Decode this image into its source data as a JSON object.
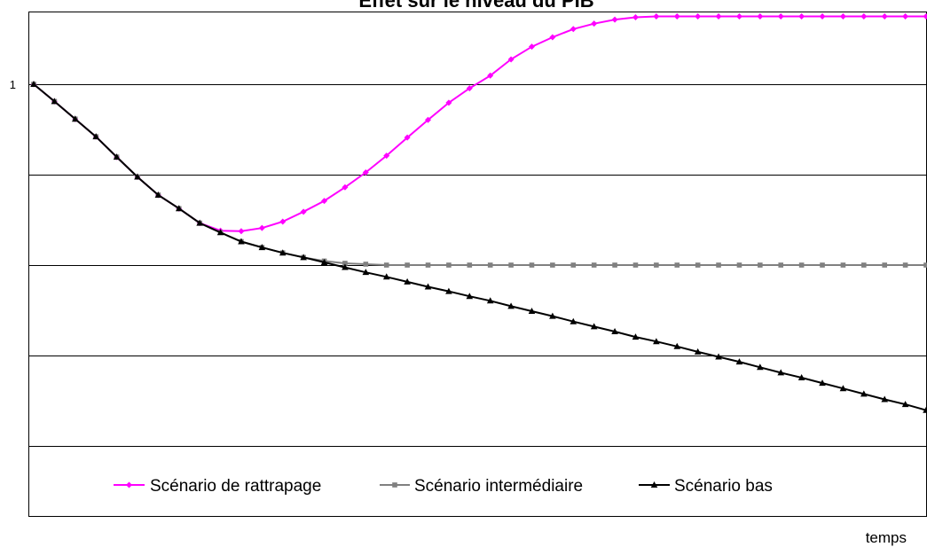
{
  "chart_data": {
    "type": "line",
    "title": "Effet sur le niveau du PIB",
    "xlabel": "temps",
    "ylabel": "",
    "y_tick_labels": [
      "1"
    ],
    "ylim": [
      0.4,
      1.075
    ],
    "grid": true,
    "legend_position": "bottom-inside",
    "series": [
      {
        "name": "Scénario de rattrapage",
        "color": "#ff00ff",
        "marker": "diamond",
        "values": [
          1.0,
          0.981,
          0.9615,
          0.942,
          0.9195,
          0.8975,
          0.8775,
          0.8625,
          0.8465,
          0.838,
          0.8375,
          0.841,
          0.848,
          0.859,
          0.871,
          0.886,
          0.9025,
          0.921,
          0.941,
          0.9605,
          0.9795,
          0.9955,
          1.0095,
          1.0275,
          1.0415,
          1.052,
          1.061,
          1.067,
          1.0715,
          1.074,
          1.075,
          1.075,
          1.075,
          1.075,
          1.075,
          1.075,
          1.075,
          1.075,
          1.075,
          1.075,
          1.075,
          1.075,
          1.075,
          1.075
        ]
      },
      {
        "name": "Scénario intermédiaire",
        "color": "#808080",
        "marker": "square",
        "values": [
          1.0,
          0.981,
          0.9615,
          0.942,
          0.9195,
          0.8975,
          0.8775,
          0.8625,
          0.8465,
          0.836,
          0.826,
          0.8195,
          0.8135,
          0.8085,
          0.8045,
          0.802,
          0.801,
          0.8,
          0.8,
          0.8,
          0.8,
          0.8,
          0.8,
          0.8,
          0.8,
          0.8,
          0.8,
          0.8,
          0.8,
          0.8,
          0.8,
          0.8,
          0.8,
          0.8,
          0.8,
          0.8,
          0.8,
          0.8,
          0.8,
          0.8,
          0.8,
          0.8,
          0.8,
          0.8
        ]
      },
      {
        "name": "Scénario bas",
        "color": "#000000",
        "marker": "triangle",
        "values": [
          1.0,
          0.981,
          0.9615,
          0.942,
          0.9195,
          0.8975,
          0.8775,
          0.8625,
          0.8465,
          0.836,
          0.826,
          0.8195,
          0.8135,
          0.8085,
          0.803,
          0.7975,
          0.792,
          0.787,
          0.7815,
          0.776,
          0.771,
          0.7655,
          0.7605,
          0.7545,
          0.749,
          0.7435,
          0.7375,
          0.732,
          0.7265,
          0.7205,
          0.7155,
          0.71,
          0.704,
          0.6985,
          0.693,
          0.687,
          0.681,
          0.6755,
          0.6695,
          0.6635,
          0.6575,
          0.6515,
          0.646,
          0.6395
        ]
      }
    ]
  }
}
